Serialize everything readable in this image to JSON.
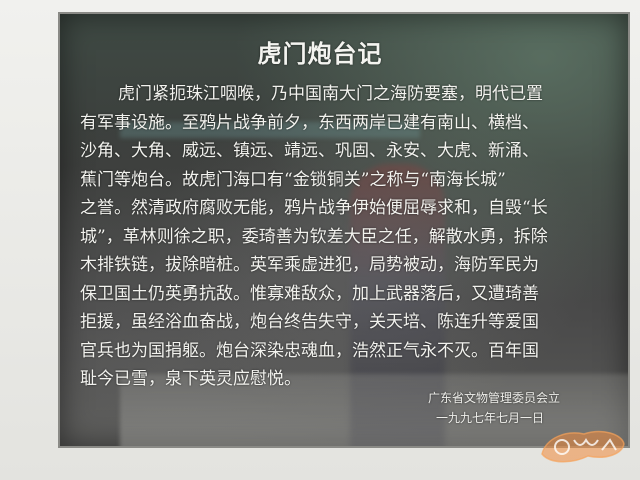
{
  "plaque": {
    "title": "虎门炮台记",
    "lines": [
      "虎门紧扼珠江咽喉，乃中国南大门之海防要塞，明代已置",
      "有军事设施。至鸦片战争前夕，东西两岸已建有南山、横档、",
      "沙角、大角、威远、镇远、靖远、巩固、永安、大虎、新涌、",
      "蕉门等炮台。故虎门海口有“金锁铜关”之称与“南海长城”",
      "之誉。然清政府腐败无能，鸦片战争伊始便屈辱求和，自毁“长",
      "城”，革林则徐之职，委琦善为钦差大臣之任，解散水勇，拆除",
      "木排铁链，拔除暗桩。英军乘虚进犯，局势被动，海防军民为",
      "保卫国土仍英勇抗敌。惟寡难敌众，加上武器落后，又遭琦善",
      "拒援，虽经浴血奋战，炮台终告失守，关天培、陈连升等爱国",
      "官兵也为国捐躯。炮台深染忠魂血，浩然正气永不灭。百年国",
      "耻今已雪，泉下英灵应慰悦。"
    ],
    "issuer": "广东省文物管理委员会立",
    "date": "一九九七年七月一日"
  },
  "colors": {
    "plaque_bg": "#3b3d3b",
    "text": "#f2f2ee",
    "watermark": "#f08a3c"
  },
  "icons": {
    "watermark": "site-logo-watermark"
  }
}
